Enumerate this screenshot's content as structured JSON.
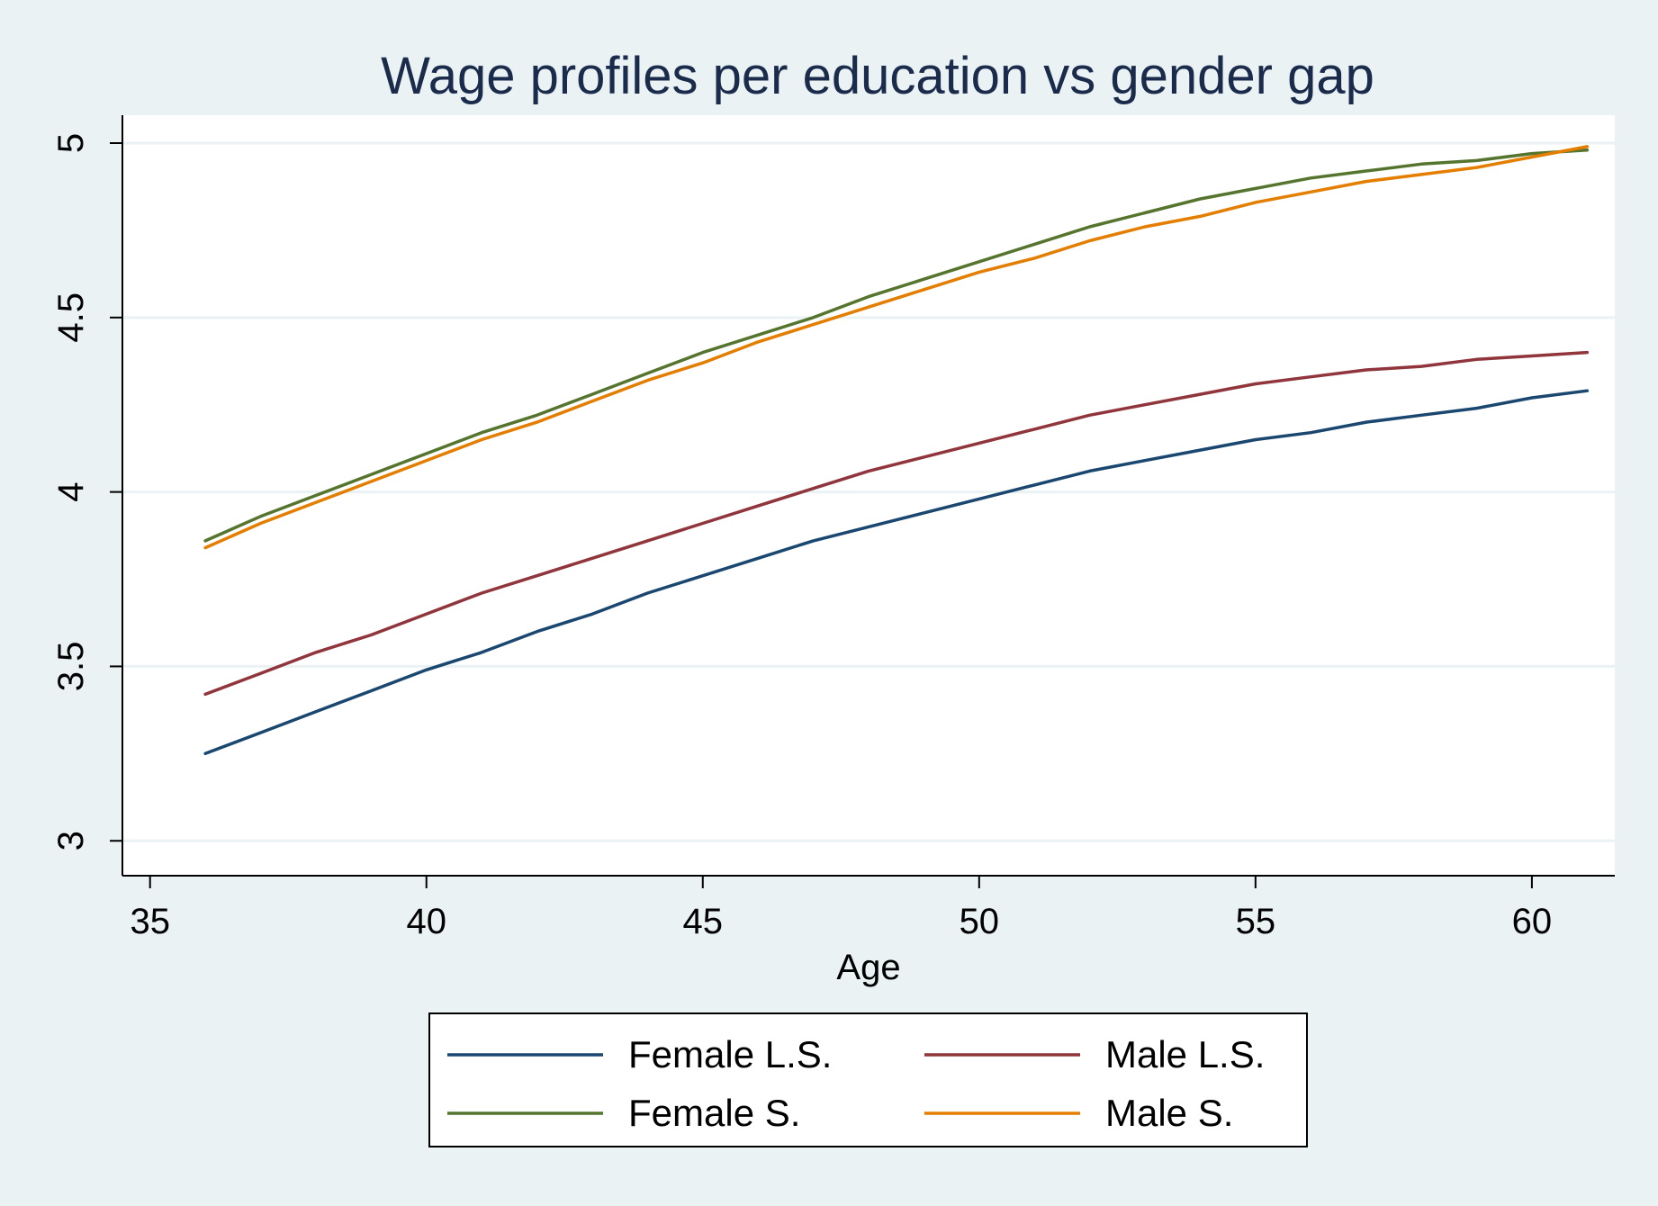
{
  "chart_data": {
    "type": "line",
    "title": "Wage profiles per education vs gender gap",
    "xlabel": "Age",
    "ylabel": "",
    "xlim": [
      34.5,
      61.5
    ],
    "ylim": [
      2.9,
      5.08
    ],
    "xticks": [
      35,
      40,
      45,
      50,
      55,
      60
    ],
    "yticks": [
      3,
      3.5,
      4,
      4.5,
      5
    ],
    "xtick_labels": [
      "35",
      "40",
      "45",
      "50",
      "55",
      "60"
    ],
    "ytick_labels": [
      "3",
      "3.5",
      "4",
      "4.5",
      "5"
    ],
    "grid": "horizontal",
    "legend_position": "bottom",
    "x": [
      36,
      37,
      38,
      39,
      40,
      41,
      42,
      43,
      44,
      45,
      46,
      47,
      48,
      49,
      50,
      51,
      52,
      53,
      54,
      55,
      56,
      57,
      58,
      59,
      60,
      61
    ],
    "series": [
      {
        "name": "Female L.S.",
        "color": "#1a476f",
        "values": [
          3.25,
          3.31,
          3.37,
          3.43,
          3.49,
          3.54,
          3.6,
          3.65,
          3.71,
          3.76,
          3.81,
          3.86,
          3.9,
          3.94,
          3.98,
          4.02,
          4.06,
          4.09,
          4.12,
          4.15,
          4.17,
          4.2,
          4.22,
          4.24,
          4.27,
          4.29
        ]
      },
      {
        "name": "Male L.S.",
        "color": "#90353b",
        "values": [
          3.42,
          3.48,
          3.54,
          3.59,
          3.65,
          3.71,
          3.76,
          3.81,
          3.86,
          3.91,
          3.96,
          4.01,
          4.06,
          4.1,
          4.14,
          4.18,
          4.22,
          4.25,
          4.28,
          4.31,
          4.33,
          4.35,
          4.36,
          4.38,
          4.39,
          4.4
        ]
      },
      {
        "name": "Female S.",
        "color": "#55752f",
        "values": [
          3.86,
          3.93,
          3.99,
          4.05,
          4.11,
          4.17,
          4.22,
          4.28,
          4.34,
          4.4,
          4.45,
          4.5,
          4.56,
          4.61,
          4.66,
          4.71,
          4.76,
          4.8,
          4.84,
          4.87,
          4.9,
          4.92,
          4.94,
          4.95,
          4.97,
          4.98
        ]
      },
      {
        "name": "Male S.",
        "color": "#e37e00",
        "values": [
          3.84,
          3.91,
          3.97,
          4.03,
          4.09,
          4.15,
          4.2,
          4.26,
          4.32,
          4.37,
          4.43,
          4.48,
          4.53,
          4.58,
          4.63,
          4.67,
          4.72,
          4.76,
          4.79,
          4.83,
          4.86,
          4.89,
          4.91,
          4.93,
          4.96,
          4.99
        ]
      }
    ]
  },
  "colors": {
    "background": "#eaf2f3",
    "plot_area": "#ffffff",
    "gridline": "#eaf2f3",
    "title": "#1a2b4c"
  }
}
